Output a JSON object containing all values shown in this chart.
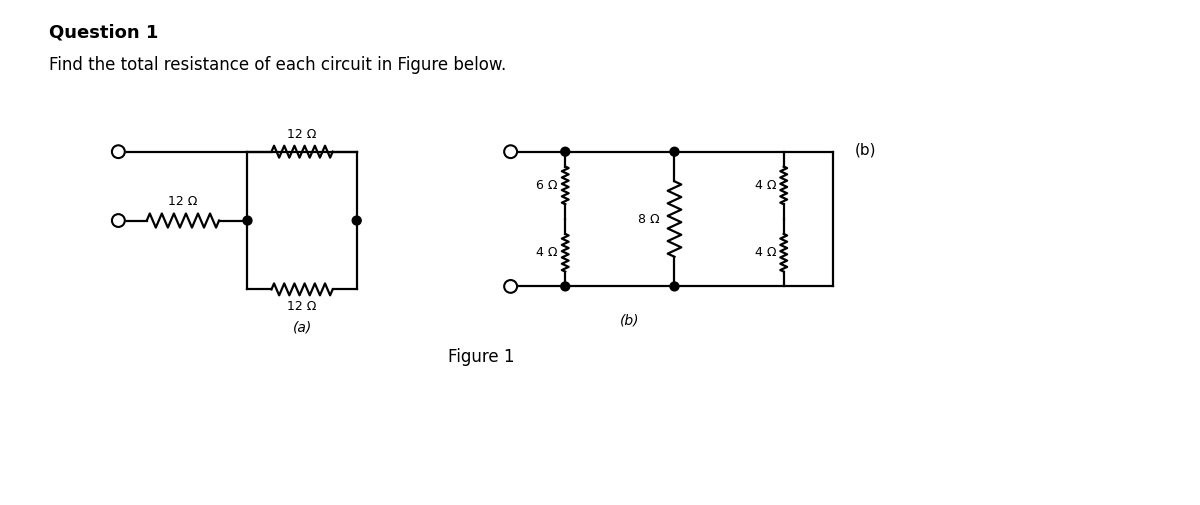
{
  "title": "Question 1",
  "subtitle": "Find the total resistance of each circuit in Figure below.",
  "figure_label": "Figure 1",
  "bg_color": "#ffffff",
  "line_color": "#000000",
  "text_color": "#000000",
  "title_fontsize": 13,
  "subtitle_fontsize": 12,
  "label_fontsize": 10,
  "fig_label_fontsize": 12,
  "circuit_a_label": "(a)",
  "circuit_b_label_bottom": "(b)",
  "circuit_b_label_right": "(b)",
  "res_a_series": "12 Ω",
  "res_a_top": "12 Ω",
  "res_a_bot": "12 Ω",
  "res_b1_top": "6 Ω",
  "res_b1_bot": "4 Ω",
  "res_b2": "8 Ω",
  "res_b3_top": "4 Ω",
  "res_b3_bot": "4 Ω"
}
